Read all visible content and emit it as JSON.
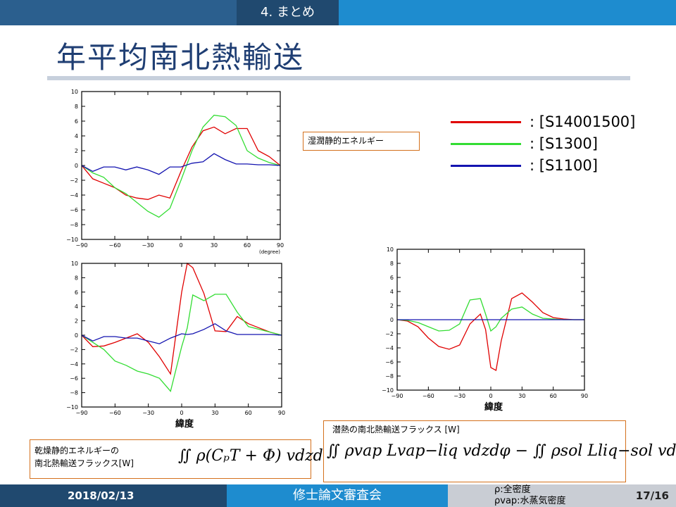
{
  "header": {
    "section": "4. まとめ"
  },
  "slide": {
    "title": "年平均南北熱輸送"
  },
  "legend": [
    {
      "label": ": [S14001500]",
      "color": "#e00000"
    },
    {
      "label": ": [S1300]",
      "color": "#33dd33"
    },
    {
      "label": ": [S1100]",
      "color": "#1414b0"
    }
  ],
  "annotations": {
    "moist_static": "湿潤静的エネルギー",
    "dry_static_line1": "乾燥静的エネルギーの",
    "dry_static_line2": "南北熱輸送フラックス[W]",
    "dry_formula": "∬ ρ(CₚT + Φ) vdzdφ",
    "latent_title": "潜熱の南北熱輸送フラックス [W]",
    "latent_formula": "∬ ρvap Lvap−liq vdzdφ − ∬ ρsol Lliq−sol vdzdφ"
  },
  "footer": {
    "date": "2018/02/13",
    "event": "修士論文審査会",
    "notes_line1": "ρ:全密度",
    "notes_line2": "ρvap:水蒸気密度",
    "page": "17/16"
  },
  "chart_data": [
    {
      "type": "line",
      "x": [
        -90,
        -80,
        -70,
        -60,
        -50,
        -40,
        -30,
        -20,
        -10,
        0,
        10,
        20,
        30,
        40,
        50,
        60,
        70,
        80,
        90
      ],
      "xticks": [
        -90,
        -60,
        -30,
        0,
        30,
        60,
        90
      ],
      "yticks": [
        -10,
        -8,
        -6,
        -4,
        -2,
        0,
        2,
        4,
        6,
        8,
        10
      ],
      "xlim": [
        -90,
        90
      ],
      "ylim": [
        -10,
        10
      ],
      "xlabel": "(degree)",
      "series": [
        {
          "color": "#e00000",
          "values": [
            0,
            -1.8,
            -2.4,
            -3.0,
            -4.0,
            -4.4,
            -4.6,
            -4.0,
            -4.4,
            -0.8,
            2.5,
            4.7,
            5.2,
            4.3,
            5.0,
            5.0,
            2.0,
            1.2,
            0
          ]
        },
        {
          "color": "#33dd33",
          "values": [
            0,
            -1.0,
            -1.6,
            -3.0,
            -3.8,
            -5.0,
            -6.2,
            -7.0,
            -5.8,
            -2.0,
            2.0,
            5.2,
            6.8,
            6.6,
            5.4,
            2.0,
            1.0,
            0.4,
            0
          ]
        },
        {
          "color": "#1414b0",
          "values": [
            0,
            -0.8,
            -0.2,
            -0.2,
            -0.6,
            -0.2,
            -0.6,
            -1.2,
            -0.2,
            -0.2,
            0.3,
            0.5,
            1.6,
            0.8,
            0.2,
            0.2,
            0.1,
            0.1,
            0
          ]
        }
      ]
    },
    {
      "type": "line",
      "x": [
        -90,
        -80,
        -70,
        -60,
        -50,
        -40,
        -30,
        -20,
        -10,
        0,
        5,
        10,
        20,
        30,
        40,
        50,
        60,
        70,
        80,
        90
      ],
      "xticks": [
        -90,
        -60,
        -30,
        0,
        30,
        60,
        90
      ],
      "yticks": [
        -10,
        -8,
        -6,
        -4,
        -2,
        0,
        2,
        4,
        6,
        8,
        10
      ],
      "xlim": [
        -90,
        90
      ],
      "ylim": [
        -10,
        10
      ],
      "xlabel": "緯度",
      "series": [
        {
          "color": "#e00000",
          "values": [
            0,
            -1.6,
            -1.5,
            -1.0,
            -0.4,
            0.2,
            -1.0,
            -3.0,
            -5.4,
            6.0,
            10.0,
            9.4,
            5.8,
            0.6,
            0.5,
            2.6,
            1.6,
            1.0,
            0.4,
            0
          ]
        },
        {
          "color": "#33dd33",
          "values": [
            0,
            -1.0,
            -2.0,
            -3.6,
            -4.2,
            -5.0,
            -5.4,
            -6.0,
            -7.8,
            -1.6,
            1.0,
            5.6,
            4.8,
            5.7,
            5.7,
            3.2,
            1.2,
            0.8,
            0.4,
            0
          ]
        },
        {
          "color": "#1414b0",
          "values": [
            0,
            -0.8,
            -0.2,
            -0.2,
            -0.4,
            -0.4,
            -0.8,
            -1.2,
            -0.4,
            0.2,
            0.1,
            0.2,
            0.8,
            1.6,
            0.6,
            0.1,
            0.1,
            0.1,
            0.1,
            0
          ]
        }
      ]
    },
    {
      "type": "line",
      "x": [
        -90,
        -80,
        -70,
        -60,
        -50,
        -40,
        -30,
        -20,
        -10,
        -5,
        0,
        5,
        10,
        20,
        30,
        40,
        50,
        60,
        70,
        80,
        90
      ],
      "xticks": [
        -90,
        -60,
        -30,
        0,
        30,
        60,
        90
      ],
      "yticks": [
        -10,
        -8,
        -6,
        -4,
        -2,
        0,
        2,
        4,
        6,
        8,
        10
      ],
      "xlim": [
        -90,
        90
      ],
      "ylim": [
        -10,
        10
      ],
      "xlabel": "緯度",
      "series": [
        {
          "color": "#e00000",
          "values": [
            0,
            -0.2,
            -1.0,
            -2.6,
            -3.8,
            -4.2,
            -3.6,
            -0.6,
            0.8,
            -1.4,
            -6.8,
            -7.2,
            -3.0,
            3.0,
            3.8,
            2.5,
            1.0,
            0.3,
            0.1,
            0,
            0
          ]
        },
        {
          "color": "#33dd33",
          "values": [
            0,
            -0.1,
            -0.4,
            -1.0,
            -1.6,
            -1.5,
            -0.6,
            2.8,
            3.0,
            0.8,
            -1.6,
            -1.0,
            0.2,
            1.5,
            1.8,
            0.8,
            0.2,
            0.1,
            0,
            0,
            0
          ]
        },
        {
          "color": "#1414b0",
          "values": [
            0,
            0,
            0,
            0,
            0,
            0,
            0,
            0,
            0,
            0,
            0,
            0,
            0,
            0,
            0,
            0,
            0,
            0,
            0,
            0,
            0
          ]
        }
      ]
    }
  ]
}
